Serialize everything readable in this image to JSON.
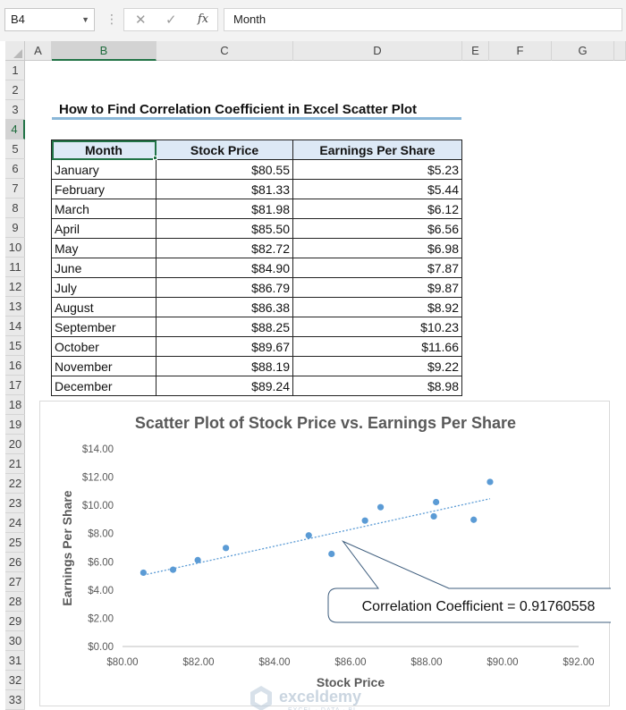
{
  "formula_bar": {
    "name_box": "B4",
    "formula": "Month",
    "fx_label": "fx"
  },
  "sheet": {
    "columns": [
      "A",
      "B",
      "C",
      "D",
      "E",
      "F",
      "G"
    ],
    "rows": [
      "1",
      "2",
      "3",
      "4",
      "5",
      "6",
      "7",
      "8",
      "9",
      "10",
      "11",
      "12",
      "13",
      "14",
      "15",
      "16",
      "17",
      "18",
      "19",
      "20",
      "21",
      "22",
      "23",
      "24",
      "25",
      "26",
      "27",
      "28",
      "29",
      "30",
      "31",
      "32",
      "33"
    ],
    "selected_column": "B",
    "selected_row": "4"
  },
  "title": "How to Find Correlation Coefficient in Excel Scatter Plot",
  "table": {
    "headers": [
      "Month",
      "Stock Price",
      "Earnings Per Share"
    ],
    "rows": [
      [
        "January",
        "$80.55",
        "$5.23"
      ],
      [
        "February",
        "$81.33",
        "$5.44"
      ],
      [
        "March",
        "$81.98",
        "$6.12"
      ],
      [
        "April",
        "$85.50",
        "$6.56"
      ],
      [
        "May",
        "$82.72",
        "$6.98"
      ],
      [
        "June",
        "$84.90",
        "$7.87"
      ],
      [
        "July",
        "$86.79",
        "$9.87"
      ],
      [
        "August",
        "$86.38",
        "$8.92"
      ],
      [
        "September",
        "$88.25",
        "$10.23"
      ],
      [
        "October",
        "$89.67",
        "$11.66"
      ],
      [
        "November",
        "$88.19",
        "$9.22"
      ],
      [
        "December",
        "$89.24",
        "$8.98"
      ]
    ]
  },
  "chart_data": {
    "type": "scatter",
    "title": "Scatter Plot of Stock Price vs. Earnings Per Share",
    "xlabel": "Stock Price",
    "ylabel": "Earnings Per Share",
    "xlim": [
      80,
      92
    ],
    "ylim": [
      0,
      14
    ],
    "x_ticks": [
      "$80.00",
      "$82.00",
      "$84.00",
      "$86.00",
      "$88.00",
      "$90.00",
      "$92.00"
    ],
    "y_ticks": [
      "$0.00",
      "$2.00",
      "$4.00",
      "$6.00",
      "$8.00",
      "$10.00",
      "$12.00",
      "$14.00"
    ],
    "points": [
      {
        "x": 80.55,
        "y": 5.23
      },
      {
        "x": 81.33,
        "y": 5.44
      },
      {
        "x": 81.98,
        "y": 6.12
      },
      {
        "x": 85.5,
        "y": 6.56
      },
      {
        "x": 82.72,
        "y": 6.98
      },
      {
        "x": 84.9,
        "y": 7.87
      },
      {
        "x": 86.79,
        "y": 9.87
      },
      {
        "x": 86.38,
        "y": 8.92
      },
      {
        "x": 88.25,
        "y": 10.23
      },
      {
        "x": 89.67,
        "y": 11.66
      },
      {
        "x": 88.19,
        "y": 9.22
      },
      {
        "x": 89.24,
        "y": 8.98
      }
    ],
    "trendline": {
      "style": "dotted",
      "x": [
        80.55,
        89.67
      ],
      "y": [
        5.06,
        10.47
      ]
    },
    "annotation": "Correlation Coefficient = 0.91760558",
    "grid": false,
    "point_color": "#5b9bd5"
  },
  "watermark": {
    "brand": "exceldemy",
    "tagline": "EXCEL · DATA · BI"
  }
}
